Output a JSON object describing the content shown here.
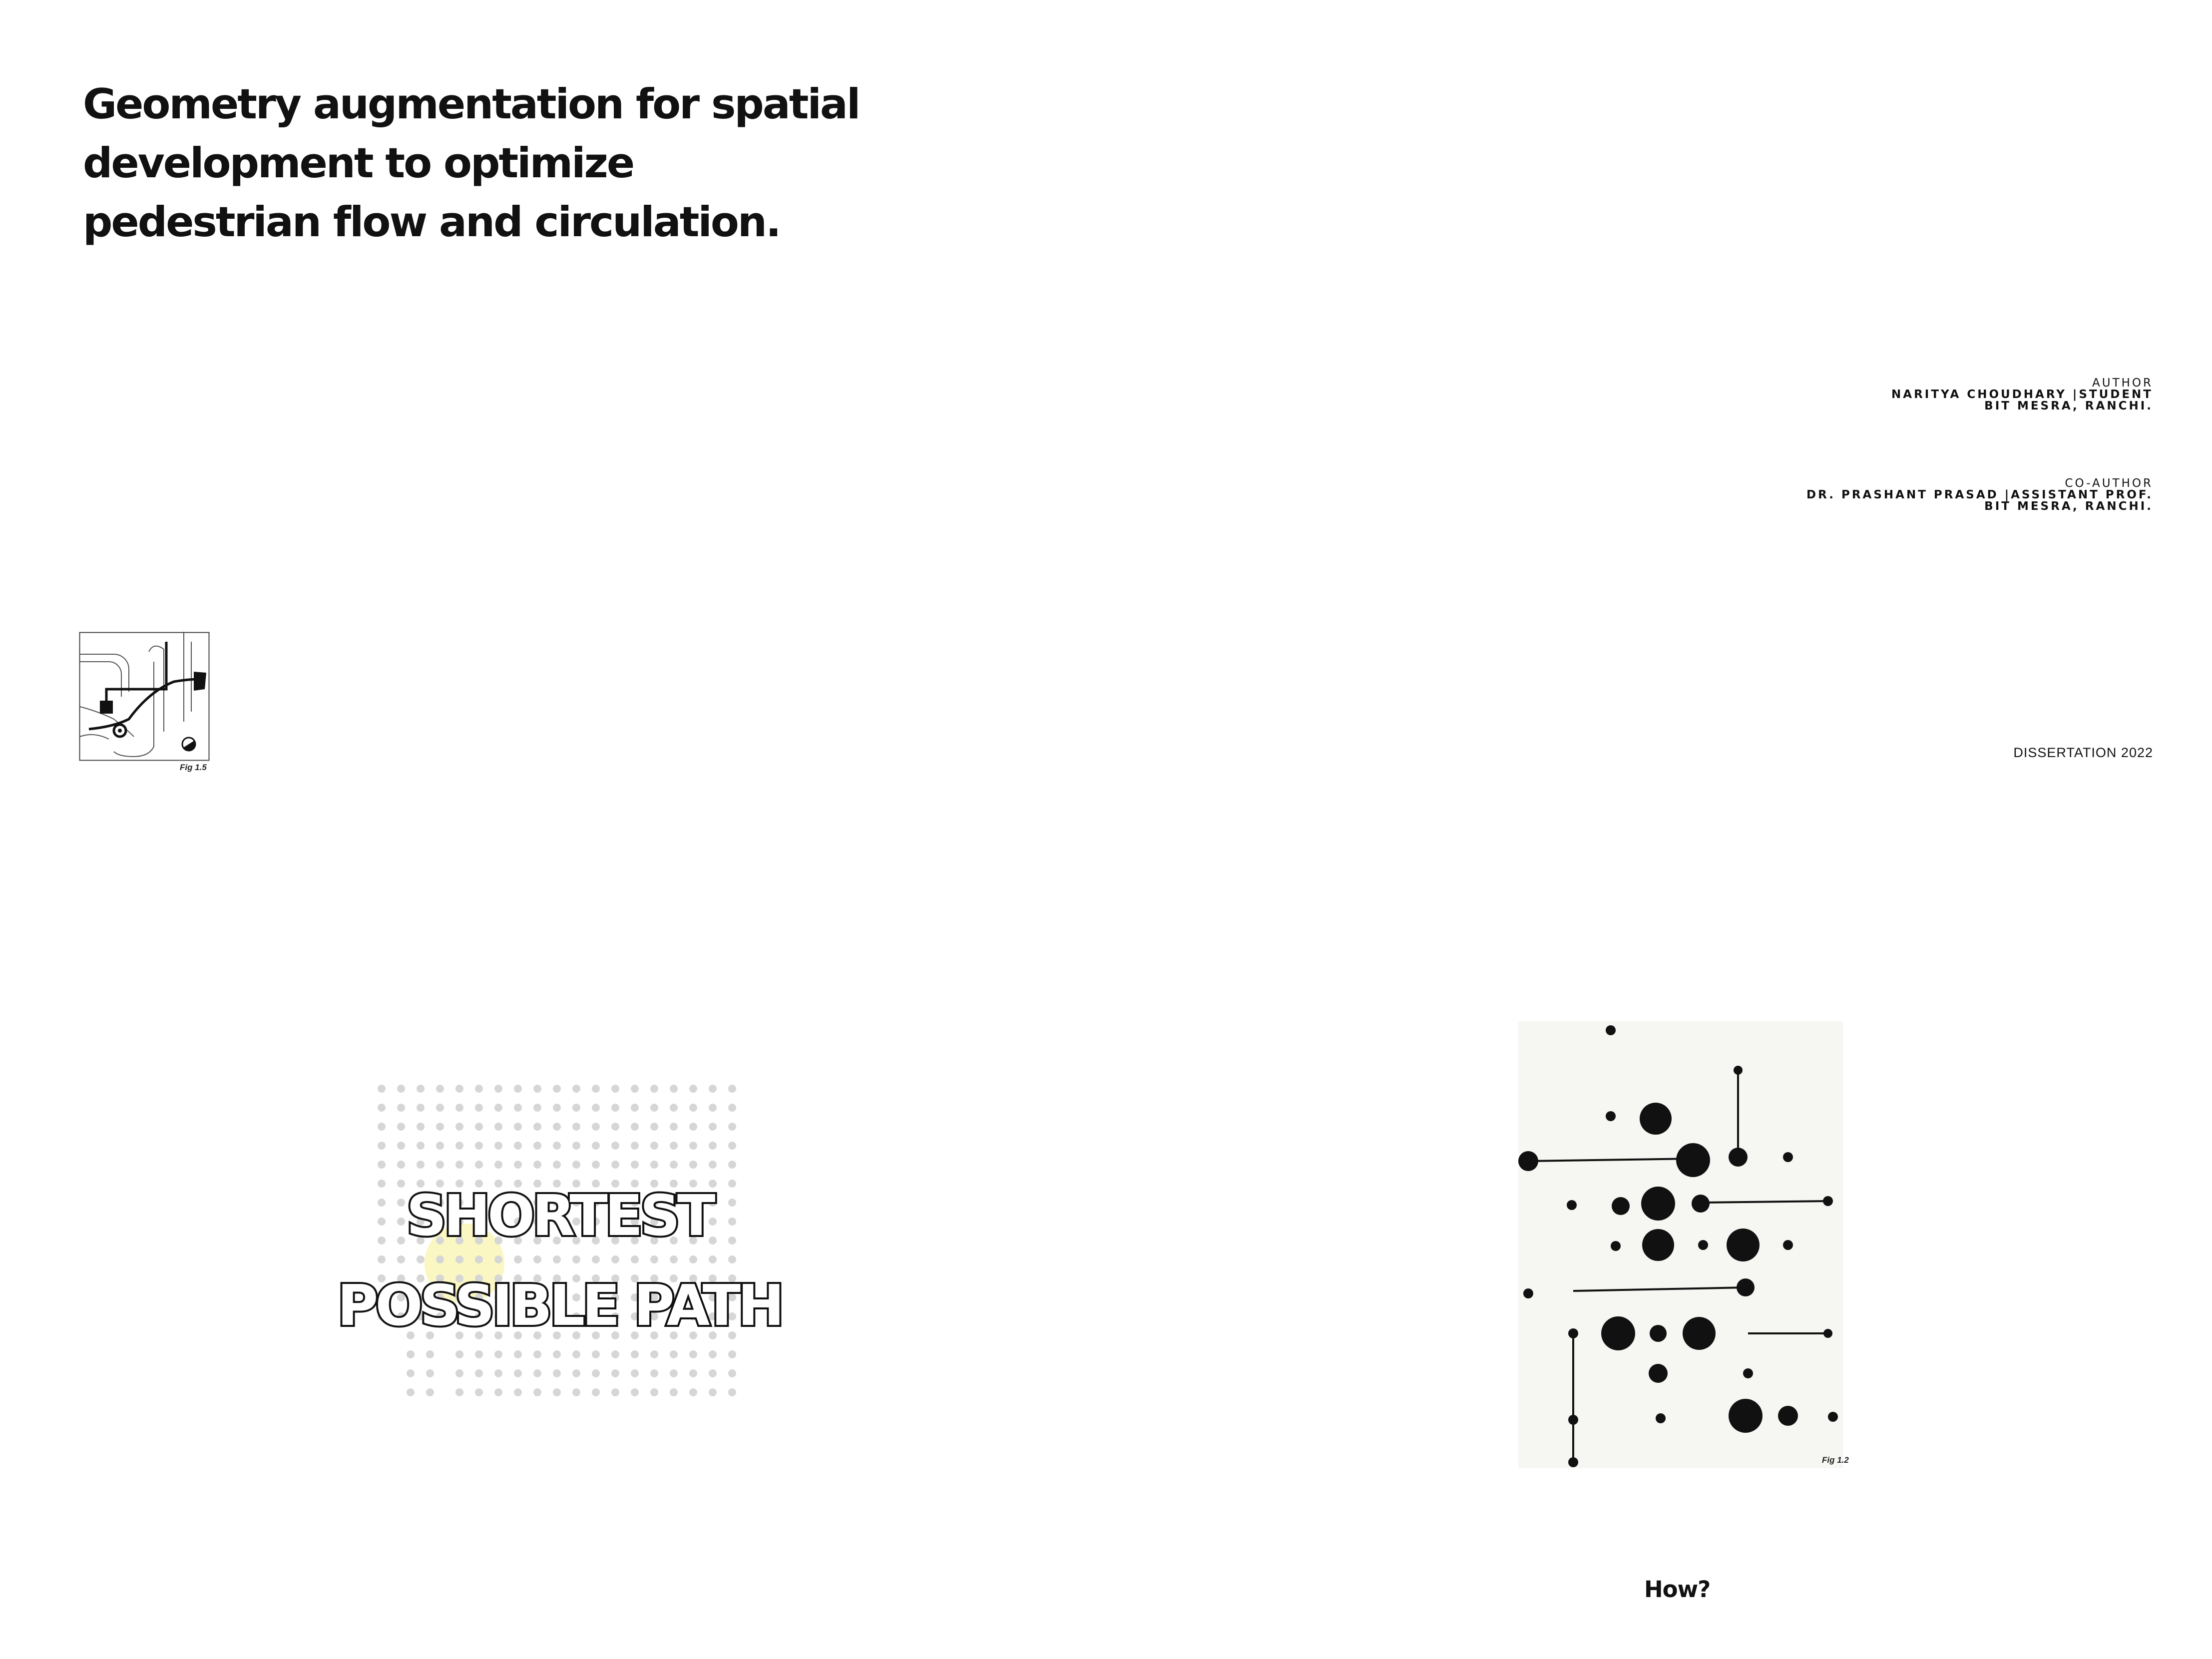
{
  "page": {
    "title": "Geometry augmentation for spatial development to optimize pedestrian flow and circulation.",
    "author": {
      "role": "AUTHOR",
      "name": "NARITYA CHOUDHARY |STUDENT",
      "institution": "BIT MESRA, RANCHI."
    },
    "coauthor": {
      "role": "CO-AUTHOR",
      "name": "DR. PRASHANT PRASAD |ASSISTANT PROF.",
      "institution": "BIT MESRA, RANCHI."
    },
    "dissertation": "DISSERTATION 2022",
    "figure_small_caption": "Fig 1.5",
    "headline": [
      "SHORTEST",
      "POSSIBLE PATH"
    ],
    "figure_large_caption": "Fig 1.2",
    "how": "How?"
  },
  "colors": {
    "ink": "#111111",
    "dot_grid": "#d6d6d6",
    "highlight": "#fbf7c2",
    "figure_background": "#f6f6f3"
  }
}
